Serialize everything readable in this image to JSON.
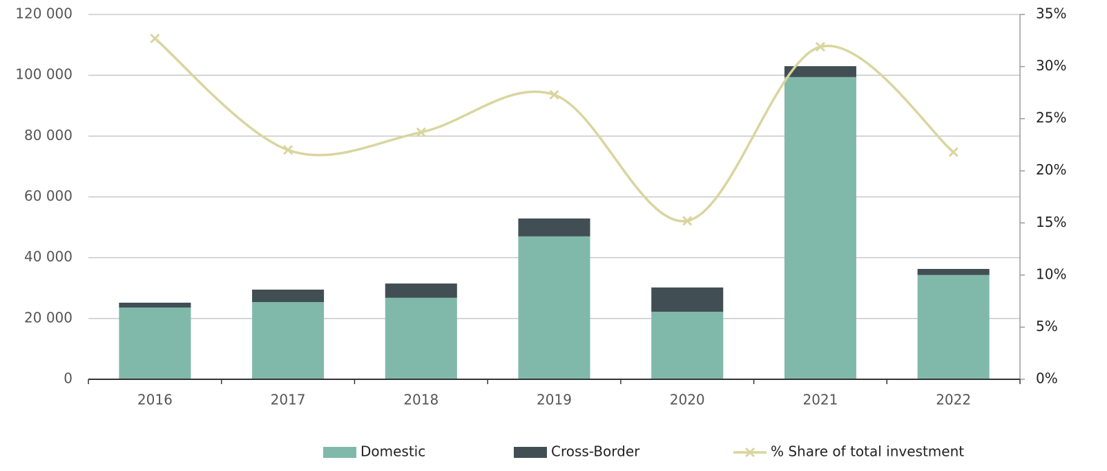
{
  "chart_data": {
    "type": "bar",
    "categories": [
      "2016",
      "2017",
      "2018",
      "2019",
      "2020",
      "2021",
      "2022"
    ],
    "series": [
      {
        "name": "Domestic",
        "color": "#80b9aa",
        "values": [
          23600,
          25400,
          26800,
          47000,
          22200,
          99400,
          34300
        ]
      },
      {
        "name": "Cross-Border",
        "color": "#414f54",
        "values": [
          1600,
          4100,
          4700,
          5900,
          8000,
          3600,
          2000
        ]
      },
      {
        "name": "% Share of total investment",
        "color": "#d9d59e",
        "axis": "y2",
        "type": "line",
        "values": [
          32.7,
          22.0,
          23.7,
          27.3,
          15.2,
          31.9,
          21.8
        ]
      }
    ],
    "stacked": true,
    "ylim": [
      0,
      120000
    ],
    "yticks": [
      0,
      {
        "value": 20000,
        "label": "20 000"
      },
      {
        "value": 40000,
        "label": "40 000"
      },
      {
        "value": 60000,
        "label": "60 000"
      },
      {
        "value": 80000,
        "label": "80 000"
      },
      {
        "value": 100000,
        "label": "100 000"
      },
      {
        "value": 120000,
        "label": "120 000"
      }
    ],
    "y2lim": [
      0,
      35
    ],
    "y2ticks": [
      {
        "value": 0,
        "label": "0%"
      },
      {
        "value": 5,
        "label": "5%"
      },
      {
        "value": 10,
        "label": "10%"
      },
      {
        "value": 15,
        "label": "15%"
      },
      {
        "value": 20,
        "label": "20%"
      },
      {
        "value": 25,
        "label": "25%"
      },
      {
        "value": 30,
        "label": "30%"
      },
      {
        "value": 35,
        "label": "35%"
      }
    ],
    "grid": true,
    "legend": "bottom"
  }
}
